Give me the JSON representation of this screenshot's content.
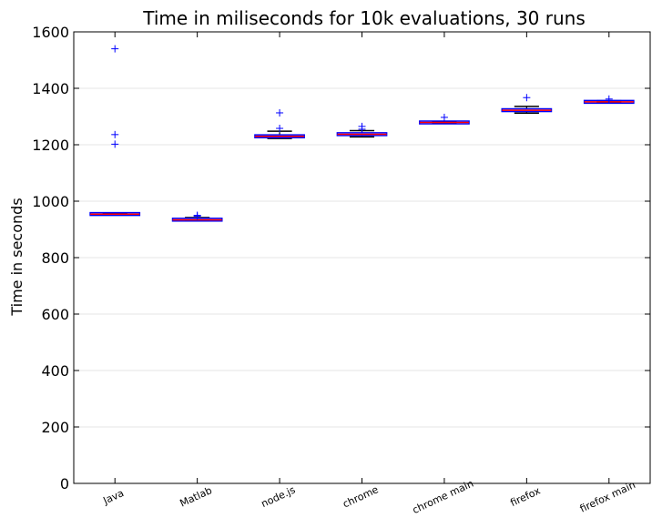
{
  "chart_data": {
    "type": "box",
    "title": "Time in miliseconds for 10k evaluations, 30 runs",
    "xlabel": "",
    "ylabel": "Time in seconds",
    "ylim": [
      0,
      1600
    ],
    "yticks": [
      0,
      200,
      400,
      600,
      800,
      1000,
      1200,
      1400,
      1600
    ],
    "grid": "horizontal",
    "categories": [
      "Java",
      "Matlab",
      "node.js",
      "chrome",
      "chrome main",
      "firefox",
      "firefox main"
    ],
    "boxes": [
      {
        "category": "Java",
        "whisker_low": 952,
        "q1": 953,
        "median": 954,
        "q3": 956,
        "whisker_high": 957,
        "outliers": [
          1540,
          1236,
          1202
        ]
      },
      {
        "category": "Matlab",
        "whisker_low": 930,
        "q1": 931,
        "median": 934,
        "q3": 938,
        "whisker_high": 942,
        "outliers": [
          950,
          947
        ]
      },
      {
        "category": "node.js",
        "whisker_low": 1222,
        "q1": 1225,
        "median": 1230,
        "q3": 1235,
        "whisker_high": 1248,
        "outliers": [
          1313,
          1258
        ]
      },
      {
        "category": "chrome",
        "whisker_low": 1228,
        "q1": 1233,
        "median": 1237,
        "q3": 1242,
        "whisker_high": 1250,
        "outliers": [
          1265,
          1255
        ]
      },
      {
        "category": "chrome main",
        "whisker_low": 1276,
        "q1": 1277,
        "median": 1279,
        "q3": 1281,
        "whisker_high": 1282,
        "outliers": [
          1297
        ]
      },
      {
        "category": "firefox",
        "whisker_low": 1312,
        "q1": 1318,
        "median": 1322,
        "q3": 1327,
        "whisker_high": 1336,
        "outliers": [
          1367
        ]
      },
      {
        "category": "firefox main",
        "whisker_low": 1349,
        "q1": 1350,
        "median": 1352,
        "q3": 1354,
        "whisker_high": 1356,
        "outliers": [
          1362
        ]
      }
    ],
    "colors": {
      "box": "#0000ff",
      "median": "#ff0000",
      "whisker": "#000000",
      "outlier": "#0000ff",
      "grid": "#e5e5e5"
    }
  }
}
